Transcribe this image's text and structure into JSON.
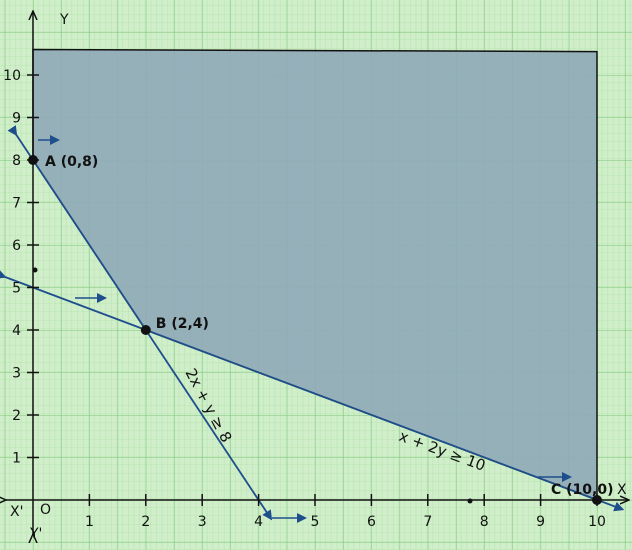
{
  "axes": {
    "x_positive": "X",
    "x_negative": "X'",
    "y_positive": "Y",
    "y_negative": "Y'",
    "origin": "O",
    "x_ticks": [
      "1",
      "2",
      "3",
      "4",
      "5",
      "6",
      "7",
      "8",
      "9",
      "10"
    ],
    "y_ticks": [
      "1",
      "2",
      "3",
      "4",
      "5",
      "6",
      "7",
      "8",
      "9",
      "10"
    ]
  },
  "points": [
    {
      "name": "A",
      "label": "A (0,8)",
      "x": 0,
      "y": 8
    },
    {
      "name": "B",
      "label": "B (2,4)",
      "x": 2,
      "y": 4
    },
    {
      "name": "C",
      "label": "C (10,0)",
      "x": 10,
      "y": 0
    }
  ],
  "constraints": [
    {
      "label": "2x + y ≥ 8",
      "a": 2,
      "b": 1,
      "c": 8
    },
    {
      "label": "x + 2y ≥ 10",
      "a": 1,
      "b": 2,
      "c": 10
    }
  ],
  "colors": {
    "grid_background": "#cfeec9",
    "grid_minor": "#a8dca0",
    "grid_major": "#7cc77a",
    "feasible_fill": "#8fa8b8",
    "constraint_line": "#1f4e8c",
    "axis": "#111111"
  }
}
